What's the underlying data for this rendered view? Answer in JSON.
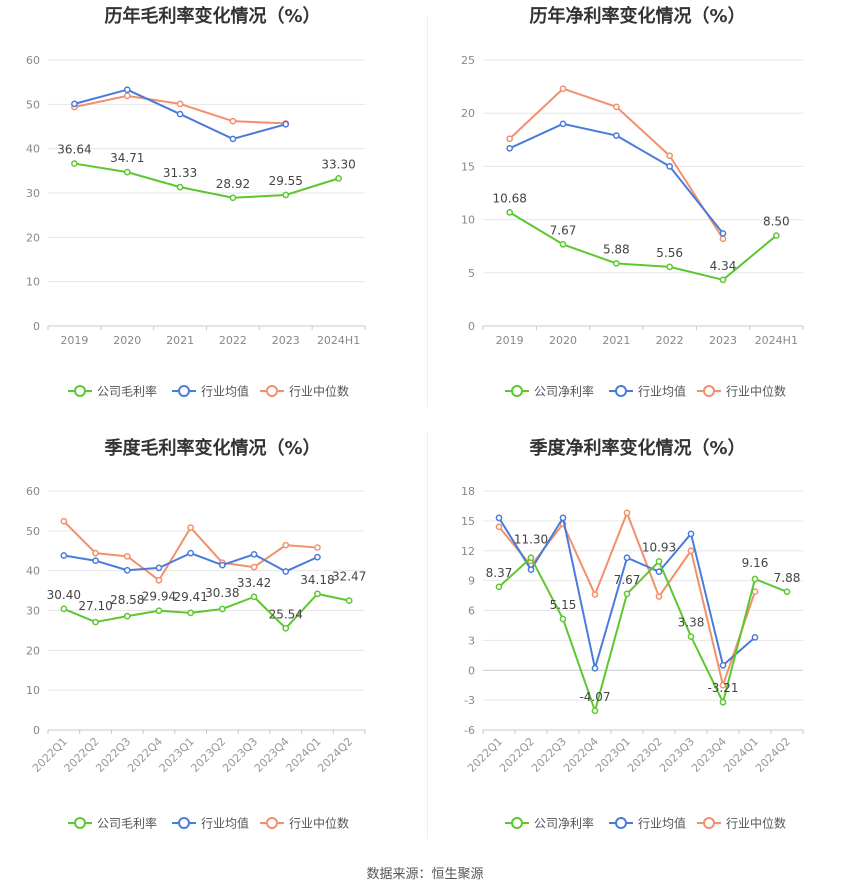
{
  "source": "数据来源：恒生聚源",
  "chart_data": [
    {
      "type": "line",
      "title": "历年毛利率变化情况（%）",
      "categories": [
        "2019",
        "2020",
        "2021",
        "2022",
        "2023",
        "2024H1"
      ],
      "ylim": [
        0,
        60
      ],
      "yticks": [
        0,
        10,
        20,
        30,
        40,
        50,
        60
      ],
      "rotate_x": false,
      "legend_position": "bottom",
      "series": [
        {
          "name": "公司毛利率",
          "color": "#5cc72f",
          "labels": true,
          "values": [
            36.64,
            34.71,
            31.33,
            28.92,
            29.55,
            33.3
          ],
          "label_text": [
            "36.64",
            "34.71",
            "31.33",
            "28.92",
            "29.55",
            "33.30"
          ]
        },
        {
          "name": "行业均值",
          "color": "#4a7bdc",
          "labels": false,
          "values": [
            50.1,
            53.3,
            47.8,
            42.2,
            45.5,
            null
          ]
        },
        {
          "name": "行业中位数",
          "color": "#f3906b",
          "labels": false,
          "values": [
            49.4,
            51.9,
            50.1,
            46.2,
            45.7,
            null
          ]
        }
      ]
    },
    {
      "type": "line",
      "title": "历年净利率变化情况（%）",
      "categories": [
        "2019",
        "2020",
        "2021",
        "2022",
        "2023",
        "2024H1"
      ],
      "ylim": [
        0,
        25
      ],
      "yticks": [
        0,
        5,
        10,
        15,
        20,
        25
      ],
      "rotate_x": false,
      "legend_position": "bottom",
      "series": [
        {
          "name": "公司净利率",
          "color": "#5cc72f",
          "labels": true,
          "values": [
            10.68,
            7.67,
            5.88,
            5.56,
            4.34,
            8.5
          ],
          "label_text": [
            "10.68",
            "7.67",
            "5.88",
            "5.56",
            "4.34",
            "8.50"
          ]
        },
        {
          "name": "行业均值",
          "color": "#4a7bdc",
          "labels": false,
          "values": [
            16.7,
            19.0,
            17.9,
            15.0,
            8.7,
            null
          ]
        },
        {
          "name": "行业中位数",
          "color": "#f3906b",
          "labels": false,
          "values": [
            17.6,
            22.3,
            20.6,
            16.0,
            8.2,
            null
          ]
        }
      ]
    },
    {
      "type": "line",
      "title": "季度毛利率变化情况（%）",
      "categories": [
        "2022Q1",
        "2022Q2",
        "2022Q3",
        "2022Q4",
        "2023Q1",
        "2023Q2",
        "2023Q3",
        "2023Q4",
        "2024Q1",
        "2024Q2"
      ],
      "ylim": [
        0,
        60
      ],
      "yticks": [
        0,
        10,
        20,
        30,
        40,
        50,
        60
      ],
      "rotate_x": true,
      "legend_position": "bottom",
      "series": [
        {
          "name": "公司毛利率",
          "color": "#5cc72f",
          "labels": true,
          "values": [
            30.4,
            27.1,
            28.58,
            29.94,
            29.41,
            30.38,
            33.42,
            25.54,
            34.18,
            32.47
          ],
          "label_text": [
            "30.40",
            "27.10",
            "28.58",
            "29.94",
            "29.41",
            "30.38",
            "33.42",
            "25.54",
            "34.18",
            "32.47"
          ]
        },
        {
          "name": "行业均值",
          "color": "#4a7bdc",
          "labels": false,
          "values": [
            43.8,
            42.5,
            40.1,
            40.7,
            44.4,
            41.4,
            44.1,
            39.8,
            43.4,
            null
          ]
        },
        {
          "name": "行业中位数",
          "color": "#f3906b",
          "labels": false,
          "values": [
            52.4,
            44.4,
            43.6,
            37.6,
            50.8,
            42.0,
            40.9,
            46.4,
            45.8,
            null
          ]
        }
      ]
    },
    {
      "type": "line",
      "title": "季度净利率变化情况（%）",
      "categories": [
        "2022Q1",
        "2022Q2",
        "2022Q3",
        "2022Q4",
        "2023Q1",
        "2023Q2",
        "2023Q3",
        "2023Q4",
        "2024Q1",
        "2024Q2"
      ],
      "ylim": [
        -6,
        18
      ],
      "yticks": [
        -6,
        -3,
        0,
        3,
        6,
        9,
        12,
        15,
        18
      ],
      "rotate_x": true,
      "legend_position": "bottom",
      "series": [
        {
          "name": "公司净利率",
          "color": "#5cc72f",
          "labels": true,
          "values": [
            8.37,
            11.3,
            5.15,
            -4.07,
            7.67,
            10.93,
            3.38,
            -3.21,
            9.16,
            7.88
          ],
          "label_text": [
            "8.37",
            "11.30",
            "5.15",
            "-4.07",
            "7.67",
            "10.93",
            "3.38",
            "-3.21",
            "9.16",
            "7.88"
          ]
        },
        {
          "name": "行业均值",
          "color": "#4a7bdc",
          "labels": false,
          "values": [
            15.3,
            10.1,
            15.3,
            0.2,
            11.3,
            9.9,
            13.7,
            0.5,
            3.3,
            null
          ]
        },
        {
          "name": "行业中位数",
          "color": "#f3906b",
          "labels": false,
          "values": [
            14.4,
            10.5,
            14.7,
            7.6,
            15.8,
            7.4,
            12.0,
            -1.5,
            7.9,
            null
          ]
        }
      ]
    }
  ]
}
